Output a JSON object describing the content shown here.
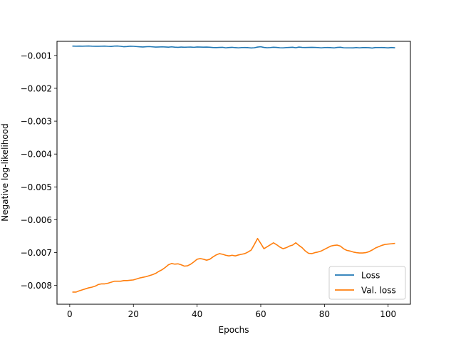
{
  "chart_data": {
    "type": "line",
    "title": "",
    "xlabel": "Epochs",
    "ylabel": "Negative log-likelihood",
    "xlim": [
      -4,
      107
    ],
    "ylim": [
      -0.00857,
      -0.00057
    ],
    "xticks": [
      0,
      20,
      40,
      60,
      80,
      100
    ],
    "yticks": [
      -0.001,
      -0.002,
      -0.003,
      -0.004,
      -0.005,
      -0.006,
      -0.007,
      -0.008
    ],
    "ytick_labels": [
      "−0.001",
      "−0.002",
      "−0.003",
      "−0.004",
      "−0.005",
      "−0.006",
      "−0.007",
      "−0.008"
    ],
    "grid": false,
    "legend": {
      "placement": "lower-right"
    },
    "series": [
      {
        "name": "Loss",
        "color": "#1f77b4",
        "x_start": 1,
        "x_step": 1,
        "values": [
          -0.000715,
          -0.000718,
          -0.000716,
          -0.000718,
          -0.000716,
          -0.000712,
          -0.000718,
          -0.00072,
          -0.00072,
          -0.000718,
          -0.000716,
          -0.000722,
          -0.000725,
          -0.000715,
          -0.000712,
          -0.000722,
          -0.000735,
          -0.000728,
          -0.000718,
          -0.000722,
          -0.00073,
          -0.000737,
          -0.000742,
          -0.000735,
          -0.00073,
          -0.000738,
          -0.000745,
          -0.000742,
          -0.000738,
          -0.000742,
          -0.000748,
          -0.000738,
          -0.000748,
          -0.000752,
          -0.000745,
          -0.00075,
          -0.000746,
          -0.000744,
          -0.000752,
          -0.000742,
          -0.000745,
          -0.000748,
          -0.000745,
          -0.00075,
          -0.000758,
          -0.000762,
          -0.000755,
          -0.000752,
          -0.000768,
          -0.000758,
          -0.000752,
          -0.000762,
          -0.000768,
          -0.00076,
          -0.000758,
          -0.000762,
          -0.000772,
          -0.000765,
          -0.000745,
          -0.000735,
          -0.000755,
          -0.000765,
          -0.00076,
          -0.00075,
          -0.000755,
          -0.000765,
          -0.000768,
          -0.00076,
          -0.000755,
          -0.00075,
          -0.000765,
          -0.000745,
          -0.000755,
          -0.000758,
          -0.000755,
          -0.000752,
          -0.000756,
          -0.00076,
          -0.000768,
          -0.00076,
          -0.000758,
          -0.000762,
          -0.00077,
          -0.000755,
          -0.00075,
          -0.000765,
          -0.000768,
          -0.000768,
          -0.00077,
          -0.00076,
          -0.000768,
          -0.000762,
          -0.00076,
          -0.000763,
          -0.000775,
          -0.000758,
          -0.00076,
          -0.000758,
          -0.000762,
          -0.00077,
          -0.000758,
          -0.000765
        ]
      },
      {
        "name": "Val. loss",
        "color": "#ff7f0e",
        "x_start": 1,
        "x_step": 1,
        "values": [
          -0.0082,
          -0.0082,
          -0.00816,
          -0.00813,
          -0.0081,
          -0.00807,
          -0.00805,
          -0.00802,
          -0.00797,
          -0.00795,
          -0.00795,
          -0.00793,
          -0.0079,
          -0.00787,
          -0.00787,
          -0.00787,
          -0.00785,
          -0.00785,
          -0.00784,
          -0.00783,
          -0.0078,
          -0.00777,
          -0.00775,
          -0.00773,
          -0.0077,
          -0.00767,
          -0.00763,
          -0.00757,
          -0.00752,
          -0.00745,
          -0.00737,
          -0.00733,
          -0.00735,
          -0.00734,
          -0.00737,
          -0.00741,
          -0.0074,
          -0.00735,
          -0.00728,
          -0.0072,
          -0.00718,
          -0.0072,
          -0.00723,
          -0.0072,
          -0.00713,
          -0.00707,
          -0.00703,
          -0.00705,
          -0.00708,
          -0.0071,
          -0.00708,
          -0.0071,
          -0.00707,
          -0.00705,
          -0.00703,
          -0.00698,
          -0.00692,
          -0.00675,
          -0.00657,
          -0.00672,
          -0.00688,
          -0.00682,
          -0.00676,
          -0.0067,
          -0.00676,
          -0.00683,
          -0.00688,
          -0.00685,
          -0.0068,
          -0.00677,
          -0.0067,
          -0.00678,
          -0.00685,
          -0.00695,
          -0.00702,
          -0.00703,
          -0.007,
          -0.00698,
          -0.00695,
          -0.0069,
          -0.00685,
          -0.0068,
          -0.00678,
          -0.00677,
          -0.0068,
          -0.00688,
          -0.00693,
          -0.00695,
          -0.00698,
          -0.007,
          -0.00701,
          -0.00701,
          -0.007,
          -0.00697,
          -0.00692,
          -0.00686,
          -0.00682,
          -0.00678,
          -0.00675,
          -0.00674,
          -0.00673,
          -0.00672
        ]
      }
    ]
  }
}
